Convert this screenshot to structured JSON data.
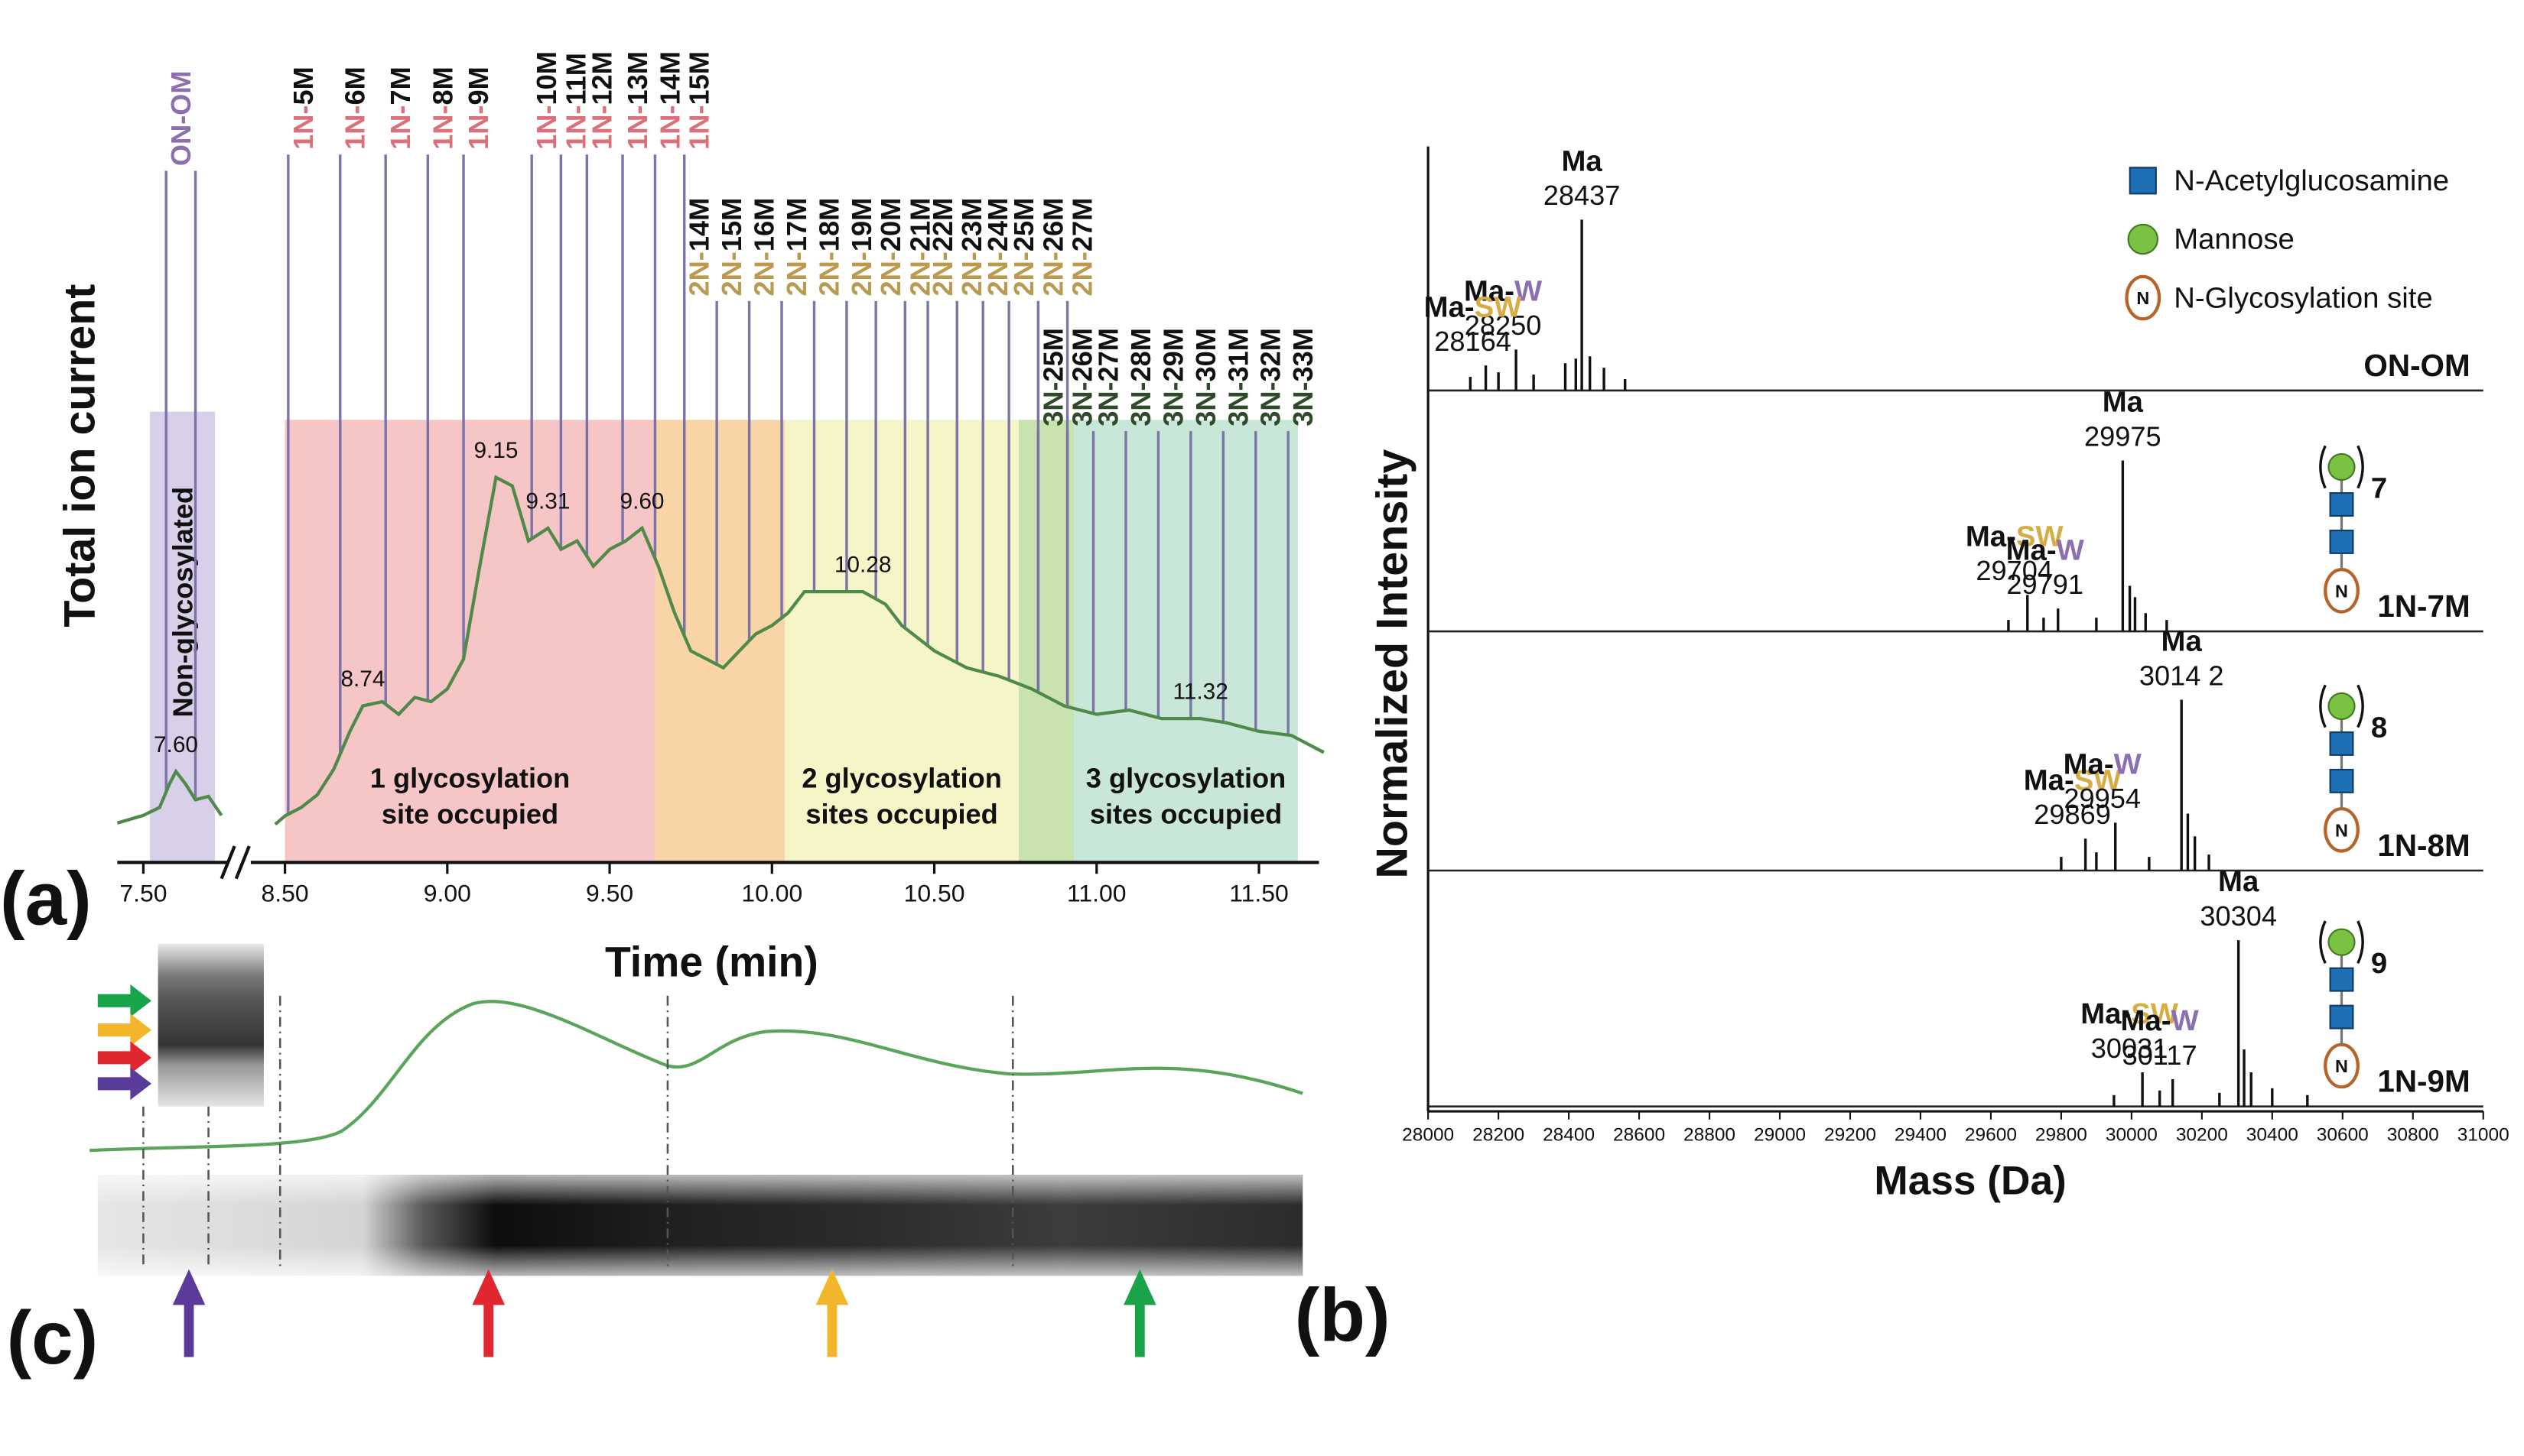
{
  "chart_data": [
    {
      "type": "line",
      "panel": "(a)",
      "xlabel": "Time (min)",
      "ylabel": "Total ion current",
      "xlim_segments": [
        [
          7.42,
          7.74
        ],
        [
          8.47,
          11.72
        ]
      ],
      "ylim": [
        0,
        100
      ],
      "color": "#4f8a4b",
      "xticks": [
        {
          "value": 7.5,
          "label": "7.50"
        },
        {
          "value": 8.5,
          "label": "8.50"
        },
        {
          "value": 9,
          "label": "9.00"
        },
        {
          "value": 9.5,
          "label": "9.50"
        },
        {
          "value": 10,
          "label": "10.00"
        },
        {
          "value": 10.5,
          "label": "10.50"
        },
        {
          "value": 11,
          "label": "11.00"
        },
        {
          "value": 11.5,
          "label": "11.50"
        }
      ],
      "series": [
        {
          "x": [
            7.42,
            7.5,
            7.55,
            7.58,
            7.6,
            7.63,
            7.66,
            7.7,
            7.74
          ],
          "values": [
            9.3,
            11.1,
            13,
            18.5,
            21.5,
            18.5,
            14.8,
            15.6,
            11.1
          ]
        },
        {
          "x": [
            8.47,
            8.5,
            8.55,
            8.6,
            8.65,
            8.7,
            8.74,
            8.8,
            8.85,
            8.9,
            8.95,
            9.0,
            9.05,
            9.1,
            9.15,
            9.2,
            9.25,
            9.31,
            9.35,
            9.4,
            9.45,
            9.5,
            9.55,
            9.6,
            9.65,
            9.7,
            9.75,
            9.8,
            9.85,
            9.9,
            9.95,
            10.0,
            10.05,
            10.1,
            10.2,
            10.28,
            10.35,
            10.4,
            10.5,
            10.6,
            10.7,
            10.8,
            10.9,
            11.0,
            11.1,
            11.2,
            11.32,
            11.4,
            11.5,
            11.6,
            11.7
          ],
          "values": [
            9,
            11,
            13,
            16,
            22,
            31,
            37,
            38,
            35,
            39,
            38,
            41,
            48,
            70,
            91,
            89,
            76,
            79,
            74,
            76,
            70,
            74,
            76,
            79,
            70,
            59,
            50,
            48,
            46,
            50,
            54,
            56,
            59,
            64,
            64,
            64,
            61,
            56,
            50,
            46,
            44,
            41,
            37,
            35,
            36,
            34,
            34,
            33,
            31,
            30,
            26
          ]
        }
      ],
      "peaks": [
        {
          "value": 7.6,
          "label": "7.60"
        },
        {
          "value": 8.74,
          "label": "8.74"
        },
        {
          "value": 9.15,
          "label": "9.15"
        },
        {
          "value": 9.31,
          "label": "9.31"
        },
        {
          "value": 9.6,
          "label": "9.60"
        },
        {
          "value": 10.28,
          "label": "10.28"
        },
        {
          "value": 11.32,
          "label": "11.32"
        }
      ],
      "regions": [
        {
          "start": 7.52,
          "end": 7.72,
          "color": "#d8d0e8",
          "label": [
            "Non-glycosylated"
          ],
          "label_rotated": true
        },
        {
          "start": 8.5,
          "end": 9.64,
          "color": "#f6c6c6",
          "label": [
            "1 glycosylation",
            "site occupied"
          ]
        },
        {
          "start": 9.64,
          "end": 10.04,
          "color": "#f9d4a6"
        },
        {
          "start": 10.04,
          "end": 10.76,
          "color": "#f5f5c8",
          "label": [
            "2 glycosylation",
            "sites occupied"
          ]
        },
        {
          "start": 10.76,
          "end": 10.93,
          "color": "#c8e2b0"
        },
        {
          "start": 10.93,
          "end": 11.62,
          "color": "#c9e7d8",
          "label": [
            "3 glycosylation",
            "sites occupied"
          ]
        }
      ],
      "line_color": "#7c74a8",
      "glycoforms": [
        {
          "prefix": "ON-",
          "color": "#8e6fae",
          "suffix_color": "#8e6fae",
          "items": [
            {
              "suffix": "OM",
              "times": [
                7.57,
                7.66
              ]
            }
          ]
        },
        {
          "prefix": "1N-",
          "color": "#d9707a",
          "suffix_color": "#111111",
          "items": [
            {
              "suffix": "5M",
              "times": [
                8.51
              ]
            },
            {
              "suffix": "6M",
              "times": [
                8.67
              ]
            },
            {
              "suffix": "7M",
              "times": [
                8.81
              ]
            },
            {
              "suffix": "8M",
              "times": [
                8.94
              ]
            },
            {
              "suffix": "9M",
              "times": [
                9.05
              ]
            },
            {
              "suffix": "10M",
              "times": [
                9.26
              ]
            },
            {
              "suffix": "11M",
              "times": [
                9.35
              ]
            },
            {
              "suffix": "12M",
              "times": [
                9.43
              ]
            },
            {
              "suffix": "13M",
              "times": [
                9.54
              ]
            },
            {
              "suffix": "14M",
              "times": [
                9.64
              ]
            },
            {
              "suffix": "15M",
              "times": [
                9.73
              ]
            }
          ]
        },
        {
          "prefix": "2N-",
          "color": "#b99a4e",
          "suffix_color": "#111111",
          "items": [
            {
              "suffix": "14M",
              "times": [
                9.73
              ]
            },
            {
              "suffix": "15M",
              "times": [
                9.83
              ]
            },
            {
              "suffix": "16M",
              "times": [
                9.93
              ]
            },
            {
              "suffix": "17M",
              "times": [
                10.03
              ]
            },
            {
              "suffix": "18M",
              "times": [
                10.13
              ]
            },
            {
              "suffix": "19M",
              "times": [
                10.23
              ]
            },
            {
              "suffix": "20M",
              "times": [
                10.32
              ]
            },
            {
              "suffix": "21M",
              "times": [
                10.41
              ]
            },
            {
              "suffix": "22M",
              "times": [
                10.48
              ]
            },
            {
              "suffix": "23M",
              "times": [
                10.57
              ]
            },
            {
              "suffix": "24M",
              "times": [
                10.65
              ]
            },
            {
              "suffix": "25M",
              "times": [
                10.73
              ]
            },
            {
              "suffix": "26M",
              "times": [
                10.82
              ]
            },
            {
              "suffix": "27M",
              "times": [
                10.91
              ]
            }
          ]
        },
        {
          "prefix": "3N-",
          "color": "#2e4a2a",
          "suffix_color": "#111111",
          "items": [
            {
              "suffix": "25M",
              "times": [
                10.82
              ]
            },
            {
              "suffix": "26M",
              "times": [
                10.91
              ]
            },
            {
              "suffix": "27M",
              "times": [
                10.99
              ]
            },
            {
              "suffix": "28M",
              "times": [
                11.09
              ]
            },
            {
              "suffix": "29M",
              "times": [
                11.19
              ]
            },
            {
              "suffix": "30M",
              "times": [
                11.29
              ]
            },
            {
              "suffix": "31M",
              "times": [
                11.39
              ]
            },
            {
              "suffix": "32M",
              "times": [
                11.49
              ]
            },
            {
              "suffix": "33M",
              "times": [
                11.59
              ]
            }
          ]
        }
      ]
    },
    {
      "type": "stem",
      "panel": "(b)",
      "xlabel": "Mass (Da)",
      "ylabel": "Normalized Intensity",
      "xlim": [
        28000,
        31000
      ],
      "ylim": [
        0,
        100
      ],
      "color": "#111111",
      "xticks": [
        28000,
        28200,
        28400,
        28600,
        28800,
        29000,
        29200,
        29400,
        29600,
        29800,
        30000,
        30200,
        30400,
        30600,
        30800,
        31000
      ],
      "legend": [
        {
          "label": "N-Acetylglucosamine",
          "shape": "square",
          "color": "#1f6fb5"
        },
        {
          "label": "Mannose",
          "shape": "circle",
          "color": "#7cc242"
        },
        {
          "label": "N-Glycosylation site",
          "shape": "site",
          "symbol": "N",
          "color": "#b5652a"
        }
      ],
      "series": [
        {
          "name": "ON-OM",
          "x": [
            28120,
            28164,
            28200,
            28250,
            28300,
            28390,
            28420,
            28437,
            28460,
            28500,
            28560
          ],
          "values": [
            6,
            11,
            8,
            18,
            7,
            12,
            14,
            75,
            15,
            10,
            5
          ],
          "annotations": [
            {
              "name": "Ma",
              "mass": 28437
            },
            {
              "name": "Ma-",
              "mod": "W",
              "mod_color": "#8c6fb0",
              "mass": 28250
            },
            {
              "name": "Ma-",
              "mod": "SW",
              "mod_color": "#d6ad45",
              "mass": 28164
            }
          ]
        },
        {
          "name": "1N-7M",
          "mannose": 7,
          "x": [
            29650,
            29704,
            29750,
            29791,
            29900,
            29975,
            29995,
            30010,
            30040,
            30100
          ],
          "values": [
            5,
            16,
            6,
            10,
            6,
            75,
            20,
            15,
            8,
            5
          ],
          "annotations": [
            {
              "name": "Ma",
              "mass": 29975
            },
            {
              "name": "Ma-",
              "mod": "SW",
              "mod_color": "#d6ad45",
              "mass": 29704
            },
            {
              "name": "Ma-",
              "mod": "W",
              "mod_color": "#8c6fb0",
              "mass": 29791
            }
          ]
        },
        {
          "name": "1N-8M",
          "mannose": 8,
          "x": [
            29800,
            29869,
            29900,
            29954,
            30050,
            30142,
            30160,
            30180,
            30220
          ],
          "values": [
            6,
            14,
            8,
            21,
            6,
            75,
            25,
            15,
            7
          ],
          "annotations": [
            {
              "name": "Ma",
              "mass": {
                "value": 30142,
                "label": "3014 2"
              }
            },
            {
              "name": "Ma-",
              "mod": "SW",
              "mod_color": "#d6ad45",
              "mass": 29869
            },
            {
              "name": "Ma-",
              "mod": "W",
              "mod_color": "#8c6fb0",
              "mass": 29954
            }
          ]
        },
        {
          "name": "1N-9M",
          "mannose": 9,
          "x": [
            29950,
            30031,
            30080,
            30117,
            30250,
            30304,
            30320,
            30340,
            30400,
            30500
          ],
          "values": [
            5,
            15,
            7,
            12,
            6,
            73,
            25,
            15,
            8,
            5
          ],
          "annotations": [
            {
              "name": "Ma",
              "mass": 30304
            },
            {
              "name": "Ma-",
              "mod": "SW",
              "mod_color": "#d6ad45",
              "mass": 30031
            },
            {
              "name": "Ma-",
              "mod": "W",
              "mod_color": "#8c6fb0",
              "mass": 30117
            }
          ]
        }
      ]
    }
  ],
  "panel_c": {
    "label": "(c)"
  }
}
